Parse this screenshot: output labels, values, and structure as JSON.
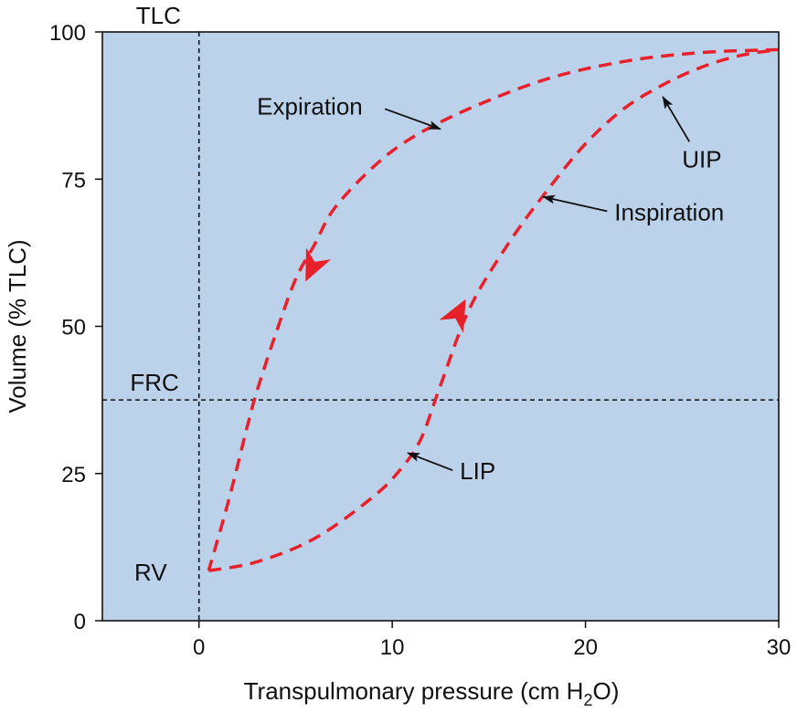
{
  "chart_data": {
    "type": "line",
    "title": "",
    "xlabel": "Transpulmonary pressure (cm H",
    "xlabel_subscript": "2",
    "xlabel_suffix": "O)",
    "ylabel": "Volume (% TLC)",
    "xlim": [
      -5,
      30
    ],
    "ylim": [
      0,
      100
    ],
    "xticks": [
      0,
      10,
      20,
      30
    ],
    "yticks": [
      0,
      25,
      50,
      75,
      100
    ],
    "reference_lines": {
      "frc_volume": 37.5,
      "zero_pressure": 0
    },
    "series": [
      {
        "name": "Inspiration",
        "style": "dashed",
        "color": "#e8202a",
        "x": [
          0.5,
          3,
          6,
          9,
          10.5,
          11.5,
          12.5,
          14,
          16,
          18,
          20,
          22,
          24,
          26,
          28,
          30
        ],
        "y": [
          8.5,
          10,
          14,
          21,
          26,
          31,
          40,
          53,
          64,
          73,
          81,
          87,
          91,
          94,
          96,
          97
        ]
      },
      {
        "name": "Expiration",
        "style": "dashed",
        "color": "#e8202a",
        "x": [
          30,
          26,
          22,
          18,
          14,
          11,
          9,
          7,
          6,
          5,
          4,
          3,
          2.5,
          1.5,
          0.5
        ],
        "y": [
          97,
          96.5,
          95,
          92,
          87,
          82,
          77,
          70,
          64,
          58,
          49,
          39,
          33,
          20,
          8.5
        ]
      }
    ],
    "markers": {
      "inspiration_arrow": {
        "x": 13.9,
        "y": 54
      },
      "expiration_arrow": {
        "x": 5.7,
        "y": 61
      }
    },
    "annotations": [
      {
        "text": "Expiration",
        "label_x": 3.0,
        "label_y": 86,
        "target_x": 12.5,
        "target_y": 83.5
      },
      {
        "text": "Inspiration",
        "label_x": 21.5,
        "label_y": 68,
        "target_x": 17.8,
        "target_y": 72
      },
      {
        "text": "UIP",
        "label_x": 25.0,
        "label_y": 77,
        "target_x": 24.0,
        "target_y": 89
      },
      {
        "text": "LIP",
        "label_x": 13.5,
        "label_y": 24,
        "target_x": 10.8,
        "target_y": 28.5
      }
    ],
    "axis_markers": [
      {
        "text": "TLC",
        "x": -2.1,
        "y": 100
      },
      {
        "text": "FRC",
        "x": -2.3,
        "y": 37.5
      },
      {
        "text": "RV",
        "x": -2.5,
        "y": 8.5
      }
    ],
    "plot_background": "#bcd2ea",
    "guide_color": "#111111"
  }
}
